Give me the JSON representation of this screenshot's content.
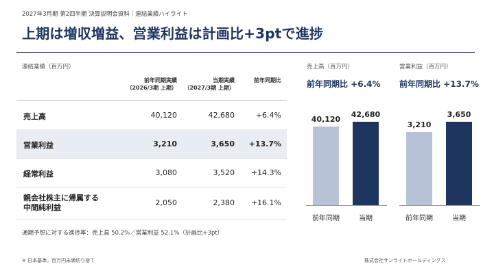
{
  "header": {
    "breadcrumb": "2027年3月期 第2四半期 決算説明会資料｜連結業績ハイライト"
  },
  "title": "上期は増収増益、営業利益は計画比+3ptで進捗",
  "table": {
    "caption": "連結業績（百万円）",
    "columns": [
      {
        "line1": "前年同期実績",
        "line2": "（2026/3期 上期）"
      },
      {
        "line1": "当期実績",
        "line2": "（2027/3期 上期）"
      },
      {
        "line1": "前年同期比",
        "line2": ""
      }
    ],
    "rows": [
      {
        "label_lines": [
          "売上高"
        ],
        "prev": "40,120",
        "cur": "42,680",
        "yoy": "+6.4%",
        "highlight": false
      },
      {
        "label_lines": [
          "営業利益"
        ],
        "prev": "3,210",
        "cur": "3,650",
        "yoy": "+13.7%",
        "highlight": true
      },
      {
        "label_lines": [
          "経常利益"
        ],
        "prev": "3,080",
        "cur": "3,520",
        "yoy": "+14.3%",
        "highlight": false
      },
      {
        "label_lines": [
          "親会社株主に帰属する",
          "中間純利益"
        ],
        "prev": "2,050",
        "cur": "2,380",
        "yoy": "+16.1%",
        "highlight": false
      }
    ]
  },
  "progress_note": "通期予想に対する進捗率：売上高 50.2%／営業利益 52.1%（計画比+3pt）",
  "footnote": "※ 日本基準。百万円未満切り捨て",
  "company": "株式会社サンライトホールディングス",
  "colors": {
    "accent": "#1e3560",
    "prev_bar": "#b8c2d6",
    "highlight_row": "#e8ecf3"
  },
  "chart_data": [
    {
      "type": "bar",
      "title": "売上高（百万円）",
      "subtitle": "前年同期比 +6.4%",
      "categories": [
        "前年同期",
        "当期"
      ],
      "values": [
        40120,
        42680
      ],
      "value_labels": [
        "40,120",
        "42,680"
      ],
      "ylim": [
        0,
        42680
      ],
      "grid": false
    },
    {
      "type": "bar",
      "title": "営業利益（百万円）",
      "subtitle": "前年同期比 +13.7%",
      "categories": [
        "前年同期",
        "当期"
      ],
      "values": [
        3210,
        3650
      ],
      "value_labels": [
        "3,210",
        "3,650"
      ],
      "ylim": [
        0,
        3650
      ],
      "grid": false
    }
  ]
}
